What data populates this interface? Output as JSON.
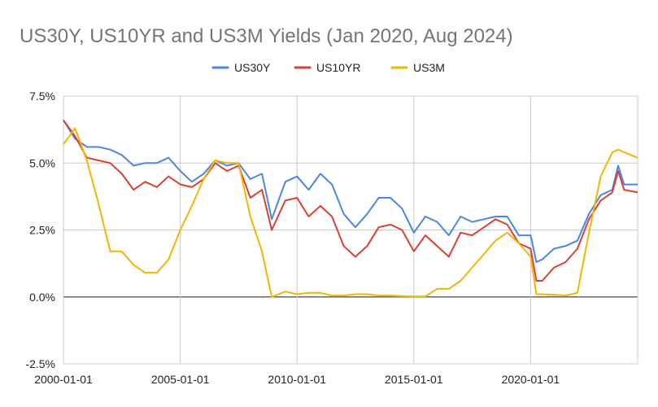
{
  "chart_data": {
    "type": "line",
    "title": "US30Y, US10YR and US3M Yields (Jan 2020, Aug 2024)",
    "xlabel": "",
    "ylabel": "",
    "x_ticks": [
      "2000-01-01",
      "2005-01-01",
      "2010-01-01",
      "2015-01-01",
      "2020-01-01"
    ],
    "y_ticks": [
      "-2.5%",
      "0.0%",
      "2.5%",
      "5.0%",
      "7.5%"
    ],
    "xlim": [
      "2000-01-01",
      "2024-08-01"
    ],
    "ylim": [
      -2.5,
      7.5
    ],
    "grid": true,
    "legend_position": "top",
    "colors": {
      "US30Y": "#4a86e8",
      "US10YR": "#db3f34",
      "US3M": "#f6b400",
      "zero_line": "#666666",
      "grid": "#cccccc"
    },
    "series": [
      {
        "name": "US30Y",
        "x": [
          "2000-01-01",
          "2000-07-01",
          "2001-01-01",
          "2001-07-01",
          "2002-01-01",
          "2002-07-01",
          "2003-01-01",
          "2003-07-01",
          "2004-01-01",
          "2004-07-01",
          "2005-01-01",
          "2005-07-01",
          "2006-01-01",
          "2006-07-01",
          "2007-01-01",
          "2007-07-01",
          "2008-01-01",
          "2008-07-01",
          "2008-12-01",
          "2009-07-01",
          "2010-01-01",
          "2010-07-01",
          "2011-01-01",
          "2011-07-01",
          "2012-01-01",
          "2012-07-01",
          "2013-01-01",
          "2013-07-01",
          "2014-01-01",
          "2014-07-01",
          "2015-01-01",
          "2015-07-01",
          "2016-01-01",
          "2016-07-01",
          "2017-01-01",
          "2017-07-01",
          "2018-01-01",
          "2018-07-01",
          "2019-01-01",
          "2019-07-01",
          "2020-01-01",
          "2020-04-01",
          "2020-07-01",
          "2021-01-01",
          "2021-07-01",
          "2022-01-01",
          "2022-07-01",
          "2023-01-01",
          "2023-07-01",
          "2023-10-01",
          "2024-01-01",
          "2024-08-01"
        ],
        "values": [
          6.6,
          5.9,
          5.6,
          5.6,
          5.5,
          5.3,
          4.9,
          5.0,
          5.0,
          5.2,
          4.7,
          4.3,
          4.6,
          5.1,
          4.9,
          5.0,
          4.4,
          4.6,
          2.9,
          4.3,
          4.5,
          4.0,
          4.6,
          4.2,
          3.1,
          2.6,
          3.1,
          3.7,
          3.7,
          3.3,
          2.4,
          3.0,
          2.8,
          2.3,
          3.0,
          2.8,
          2.9,
          3.0,
          3.0,
          2.3,
          2.3,
          1.3,
          1.4,
          1.8,
          1.9,
          2.1,
          3.1,
          3.8,
          4.0,
          4.9,
          4.2,
          4.2
        ]
      },
      {
        "name": "US10YR",
        "x": [
          "2000-01-01",
          "2000-07-01",
          "2001-01-01",
          "2001-07-01",
          "2002-01-01",
          "2002-07-01",
          "2003-01-01",
          "2003-07-01",
          "2004-01-01",
          "2004-07-01",
          "2005-01-01",
          "2005-07-01",
          "2006-01-01",
          "2006-07-01",
          "2007-01-01",
          "2007-07-01",
          "2008-01-01",
          "2008-07-01",
          "2008-12-01",
          "2009-07-01",
          "2010-01-01",
          "2010-07-01",
          "2011-01-01",
          "2011-07-01",
          "2012-01-01",
          "2012-07-01",
          "2013-01-01",
          "2013-07-01",
          "2014-01-01",
          "2014-07-01",
          "2015-01-01",
          "2015-07-01",
          "2016-01-01",
          "2016-07-01",
          "2017-01-01",
          "2017-07-01",
          "2018-01-01",
          "2018-07-01",
          "2019-01-01",
          "2019-07-01",
          "2020-01-01",
          "2020-04-01",
          "2020-07-01",
          "2021-01-01",
          "2021-07-01",
          "2022-01-01",
          "2022-07-01",
          "2023-01-01",
          "2023-07-01",
          "2023-10-01",
          "2024-01-01",
          "2024-08-01"
        ],
        "values": [
          6.6,
          6.0,
          5.2,
          5.1,
          5.0,
          4.6,
          4.0,
          4.3,
          4.1,
          4.5,
          4.2,
          4.1,
          4.4,
          5.0,
          4.7,
          4.9,
          3.7,
          4.0,
          2.5,
          3.6,
          3.7,
          3.0,
          3.4,
          3.0,
          1.9,
          1.5,
          1.9,
          2.6,
          2.7,
          2.5,
          1.7,
          2.3,
          1.9,
          1.5,
          2.4,
          2.3,
          2.6,
          2.9,
          2.7,
          2.0,
          1.8,
          0.6,
          0.6,
          1.1,
          1.3,
          1.8,
          2.9,
          3.6,
          3.9,
          4.7,
          4.0,
          3.9
        ]
      },
      {
        "name": "US3M",
        "x": [
          "2000-01-01",
          "2000-07-01",
          "2001-01-01",
          "2001-07-01",
          "2002-01-01",
          "2002-07-01",
          "2003-01-01",
          "2003-07-01",
          "2004-01-01",
          "2004-07-01",
          "2005-01-01",
          "2005-07-01",
          "2006-01-01",
          "2006-07-01",
          "2007-01-01",
          "2007-07-01",
          "2008-01-01",
          "2008-07-01",
          "2008-12-01",
          "2009-07-01",
          "2010-01-01",
          "2010-07-01",
          "2011-01-01",
          "2011-07-01",
          "2012-01-01",
          "2012-07-01",
          "2013-01-01",
          "2013-07-01",
          "2014-01-01",
          "2014-07-01",
          "2015-01-01",
          "2015-07-01",
          "2016-01-01",
          "2016-07-01",
          "2017-01-01",
          "2017-07-01",
          "2018-01-01",
          "2018-07-01",
          "2019-01-01",
          "2019-07-01",
          "2020-01-01",
          "2020-04-01",
          "2020-07-01",
          "2021-01-01",
          "2021-07-01",
          "2022-01-01",
          "2022-07-01",
          "2023-01-01",
          "2023-07-01",
          "2023-10-01",
          "2024-01-01",
          "2024-08-01"
        ],
        "values": [
          5.7,
          6.3,
          5.1,
          3.5,
          1.7,
          1.7,
          1.2,
          0.9,
          0.9,
          1.4,
          2.5,
          3.4,
          4.4,
          5.1,
          5.0,
          5.0,
          3.0,
          1.7,
          0.0,
          0.2,
          0.1,
          0.15,
          0.15,
          0.05,
          0.05,
          0.1,
          0.1,
          0.05,
          0.05,
          0.03,
          0.02,
          0.02,
          0.3,
          0.3,
          0.6,
          1.1,
          1.6,
          2.1,
          2.4,
          2.0,
          1.5,
          0.1,
          0.1,
          0.08,
          0.05,
          0.15,
          2.4,
          4.5,
          5.4,
          5.5,
          5.4,
          5.2
        ]
      }
    ]
  }
}
